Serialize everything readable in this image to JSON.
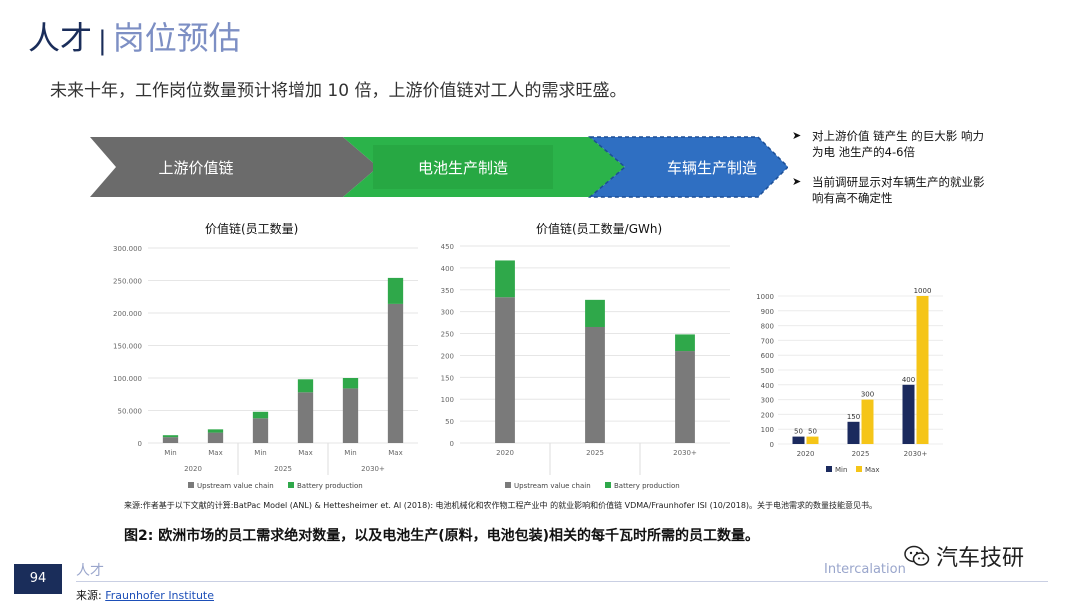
{
  "header": {
    "title_main": "人才",
    "separator": "|",
    "title_sub": "岗位预估"
  },
  "subtitle": "未来十年，工作岗位数量预计将增加 10 倍，上游价值链对工人的需求旺盛。",
  "flow": {
    "step1": "上游价值链",
    "step2": "电池生产制造",
    "step3": "车辆生产制造",
    "colors": {
      "step1": "#6b6b6b",
      "step2": "#2bb34a",
      "step3": "#2f6fc2"
    }
  },
  "notes": [
    "对上游价值 链产生 的巨大影 响力为电 池生产的4-6倍",
    "当前调研显示对车辆生产的就业影响有高不确定性"
  ],
  "chart_data": [
    {
      "type": "bar",
      "title": "价值链(员工数量)",
      "categories": [
        "Min",
        "Max",
        "Min",
        "Max",
        "Min",
        "Max"
      ],
      "groups": [
        "2020",
        "2025",
        "2030+"
      ],
      "series": [
        {
          "name": "Upstream value chain",
          "color": "#7a7a7a",
          "values": [
            9000,
            16000,
            38000,
            78000,
            84000,
            214000
          ]
        },
        {
          "name": "Battery production",
          "color": "#2fa84a",
          "values": [
            3000,
            5000,
            10000,
            20000,
            16000,
            40000
          ]
        }
      ],
      "ylim": [
        0,
        300000
      ],
      "yticks": [
        "0",
        "50.000",
        "100.000",
        "150.000",
        "200.000",
        "250.000",
        "300.000"
      ],
      "stacked": true
    },
    {
      "type": "bar",
      "title": "价值链(员工数量/GWh)",
      "categories": [
        "2020",
        "2025",
        "2030+"
      ],
      "series": [
        {
          "name": "Upstream value chain",
          "color": "#7a7a7a",
          "values": [
            333,
            265,
            210
          ]
        },
        {
          "name": "Battery production",
          "color": "#2fa84a",
          "values": [
            84,
            62,
            38
          ]
        }
      ],
      "ylim": [
        0,
        450
      ],
      "yticks": [
        "0",
        "50",
        "100",
        "150",
        "200",
        "250",
        "300",
        "350",
        "400",
        "450"
      ],
      "stacked": true
    },
    {
      "type": "bar",
      "title": "",
      "categories": [
        "2020",
        "2025",
        "2030+"
      ],
      "series": [
        {
          "name": "Min",
          "color": "#1b2a5e",
          "values": [
            50,
            150,
            400
          ]
        },
        {
          "name": "Max",
          "color": "#f5c518",
          "values": [
            50,
            300,
            1000
          ]
        }
      ],
      "data_labels": [
        "50",
        "50",
        "150",
        "300",
        "400",
        "1000"
      ],
      "ylim": [
        0,
        1000
      ],
      "yticks": [
        "0",
        "100",
        "200",
        "300",
        "400",
        "500",
        "600",
        "700",
        "800",
        "900",
        "1000"
      ]
    }
  ],
  "legend1": {
    "upstream": "Upstream value chain",
    "battery": "Battery production"
  },
  "legend3": {
    "min": "Min",
    "max": "Max"
  },
  "caption_source": "来源:作者基于以下文献的计算:BatPac Model (ANL) & Hettesheimer et. Al (2018): 电池机械化和农作物工程产业中 的就业影响和价值链 VDMA/Fraunhofer ISI (10/2018)。关于电池需求的数量技能意见书。",
  "caption": "图2: 欧洲市场的员工需求绝对数量，以及电池生产(原料，电池包装)相关的每千瓦时所需的员工数量。",
  "footer": {
    "page": "94",
    "left_label": "人才",
    "right_label": "Intercalation",
    "source_prefix": "来源:",
    "source_link": "Fraunhofer Institute",
    "watermark": "汽车技研"
  }
}
